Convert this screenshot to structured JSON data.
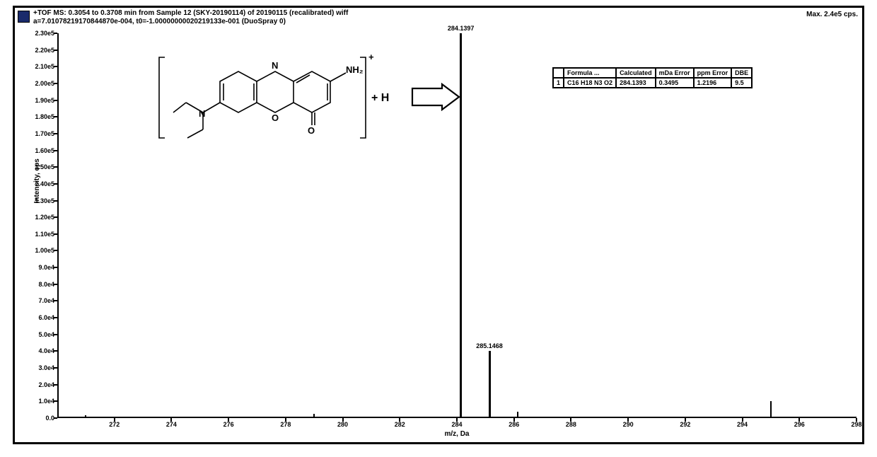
{
  "header_line1": "+TOF MS: 0.3054 to 0.3708 min from Sample 12 (SKY-20190114) of 20190115 (recalibrated) wiff",
  "header_line2": "a=7.01078219170844870e-004, t0=-1.00000000020219133e-001 (DuoSpray 0)",
  "max_label": "Max. 2.4e5 cps.",
  "legend_color": "#1a2a6b",
  "y_axis_label": "Intensity, cps",
  "x_axis_label": "m/z, Da",
  "chart": {
    "type": "mass-spectrum",
    "xlim": [
      270,
      298
    ],
    "ylim": [
      0,
      230000
    ],
    "x_ticks": [
      272,
      274,
      276,
      278,
      280,
      282,
      284,
      286,
      288,
      290,
      292,
      294,
      296,
      298
    ],
    "y_ticks": [
      {
        "v": 0,
        "l": "0.0"
      },
      {
        "v": 10000,
        "l": "1.0e4"
      },
      {
        "v": 20000,
        "l": "2.0e4"
      },
      {
        "v": 30000,
        "l": "3.0e4"
      },
      {
        "v": 40000,
        "l": "4.0e4"
      },
      {
        "v": 50000,
        "l": "5.0e4"
      },
      {
        "v": 60000,
        "l": "6.0e4"
      },
      {
        "v": 70000,
        "l": "7.0e4"
      },
      {
        "v": 80000,
        "l": "8.0e4"
      },
      {
        "v": 90000,
        "l": "9.0e4"
      },
      {
        "v": 100000,
        "l": "1.00e5"
      },
      {
        "v": 110000,
        "l": "1.10e5"
      },
      {
        "v": 120000,
        "l": "1.20e5"
      },
      {
        "v": 130000,
        "l": "1.30e5"
      },
      {
        "v": 140000,
        "l": "1.40e5"
      },
      {
        "v": 150000,
        "l": "1.50e5"
      },
      {
        "v": 160000,
        "l": "1.60e5"
      },
      {
        "v": 170000,
        "l": "1.70e5"
      },
      {
        "v": 180000,
        "l": "1.80e5"
      },
      {
        "v": 190000,
        "l": "1.90e5"
      },
      {
        "v": 200000,
        "l": "2.00e5"
      },
      {
        "v": 210000,
        "l": "2.10e5"
      },
      {
        "v": 220000,
        "l": "2.20e5"
      },
      {
        "v": 230000,
        "l": "2.30e5"
      }
    ],
    "peaks": [
      {
        "mz": 284.14,
        "intensity": 230000,
        "label": "284.1397",
        "width": 3
      },
      {
        "mz": 285.14,
        "intensity": 40000,
        "label": "285.1468",
        "width": 3
      },
      {
        "mz": 286.14,
        "intensity": 4000,
        "label": "",
        "width": 2
      },
      {
        "mz": 279.0,
        "intensity": 2500,
        "label": "",
        "width": 2
      },
      {
        "mz": 295.0,
        "intensity": 10000,
        "label": "",
        "width": 2
      },
      {
        "mz": 271.0,
        "intensity": 1500,
        "label": "",
        "width": 2
      }
    ],
    "line_color": "#000000",
    "background": "#ffffff"
  },
  "table": {
    "columns": [
      "",
      "Formula ...",
      "Calculated",
      "mDa Error",
      "ppm Error",
      "DBE"
    ],
    "rows": [
      [
        "1",
        "C16 H18 N3 O2",
        "284.1393",
        "0.3495",
        "1.2196",
        "9.5"
      ]
    ]
  },
  "molecule": {
    "charge_label": "+",
    "plus_H": " +  H",
    "nh2": "NH₂",
    "n_label": "N",
    "o_label": "O",
    "oxo": "O"
  }
}
